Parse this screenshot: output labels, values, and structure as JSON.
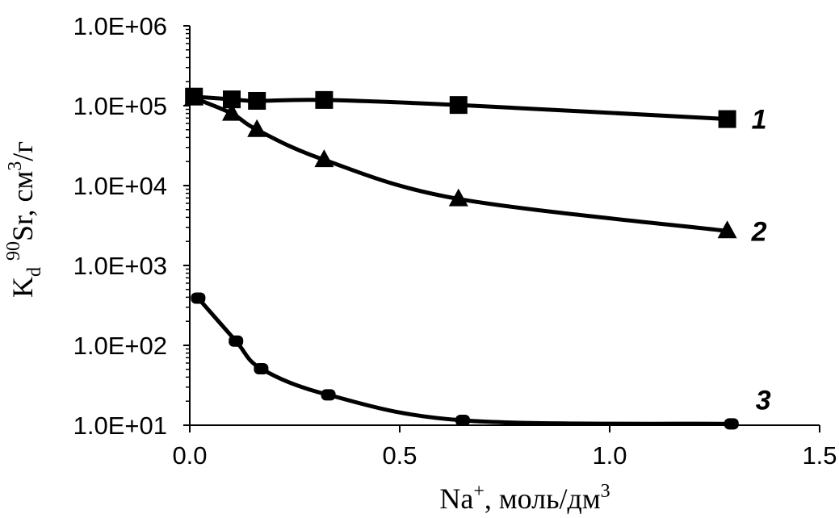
{
  "chart_data": {
    "type": "line",
    "xlabel": "Na⁺, моль/дм³",
    "ylabel": "Kd ⁹⁰Sr, см³/г",
    "ylabel_parts": {
      "k": "K",
      "sub": "d",
      "iso": "90",
      "rest": "Sr, см",
      "cube": "3",
      "tail": "/г"
    },
    "xlabel_parts": {
      "na": "Na",
      "plus": "+",
      "rest": ", моль/дм",
      "cube": "3"
    },
    "y_scale": "log",
    "xlim": [
      0,
      1.5
    ],
    "ylim": [
      10,
      1000000
    ],
    "x_ticks": [
      {
        "value": 0.0,
        "label": "0.0"
      },
      {
        "value": 0.5,
        "label": "0.5"
      },
      {
        "value": 1.0,
        "label": "1.0"
      },
      {
        "value": 1.5,
        "label": "1.5"
      }
    ],
    "y_ticks": [
      {
        "value": 10,
        "label": "1.0E+01"
      },
      {
        "value": 100,
        "label": "1.0E+02"
      },
      {
        "value": 1000,
        "label": "1.0E+03"
      },
      {
        "value": 10000,
        "label": "1.0E+04"
      },
      {
        "value": 100000,
        "label": "1.0E+05"
      },
      {
        "value": 1000000,
        "label": "1.0E+06"
      }
    ],
    "grid": false,
    "legend": "none",
    "series": [
      {
        "label": "1",
        "marker": "square",
        "color": "#000000",
        "x": [
          0.01,
          0.1,
          0.16,
          0.32,
          0.64,
          1.28
        ],
        "y": [
          130000,
          120000,
          115000,
          118000,
          102000,
          68000
        ]
      },
      {
        "label": "2",
        "marker": "triangle",
        "color": "#000000",
        "x": [
          0.01,
          0.1,
          0.16,
          0.32,
          0.64,
          1.28
        ],
        "y": [
          125000,
          80000,
          50000,
          21000,
          6800,
          2700
        ]
      },
      {
        "label": "3",
        "marker": "circle",
        "color": "#000000",
        "x": [
          0.02,
          0.11,
          0.17,
          0.33,
          0.65,
          1.29
        ],
        "y": [
          390,
          113,
          51,
          24,
          11.5,
          10.4
        ]
      }
    ]
  }
}
